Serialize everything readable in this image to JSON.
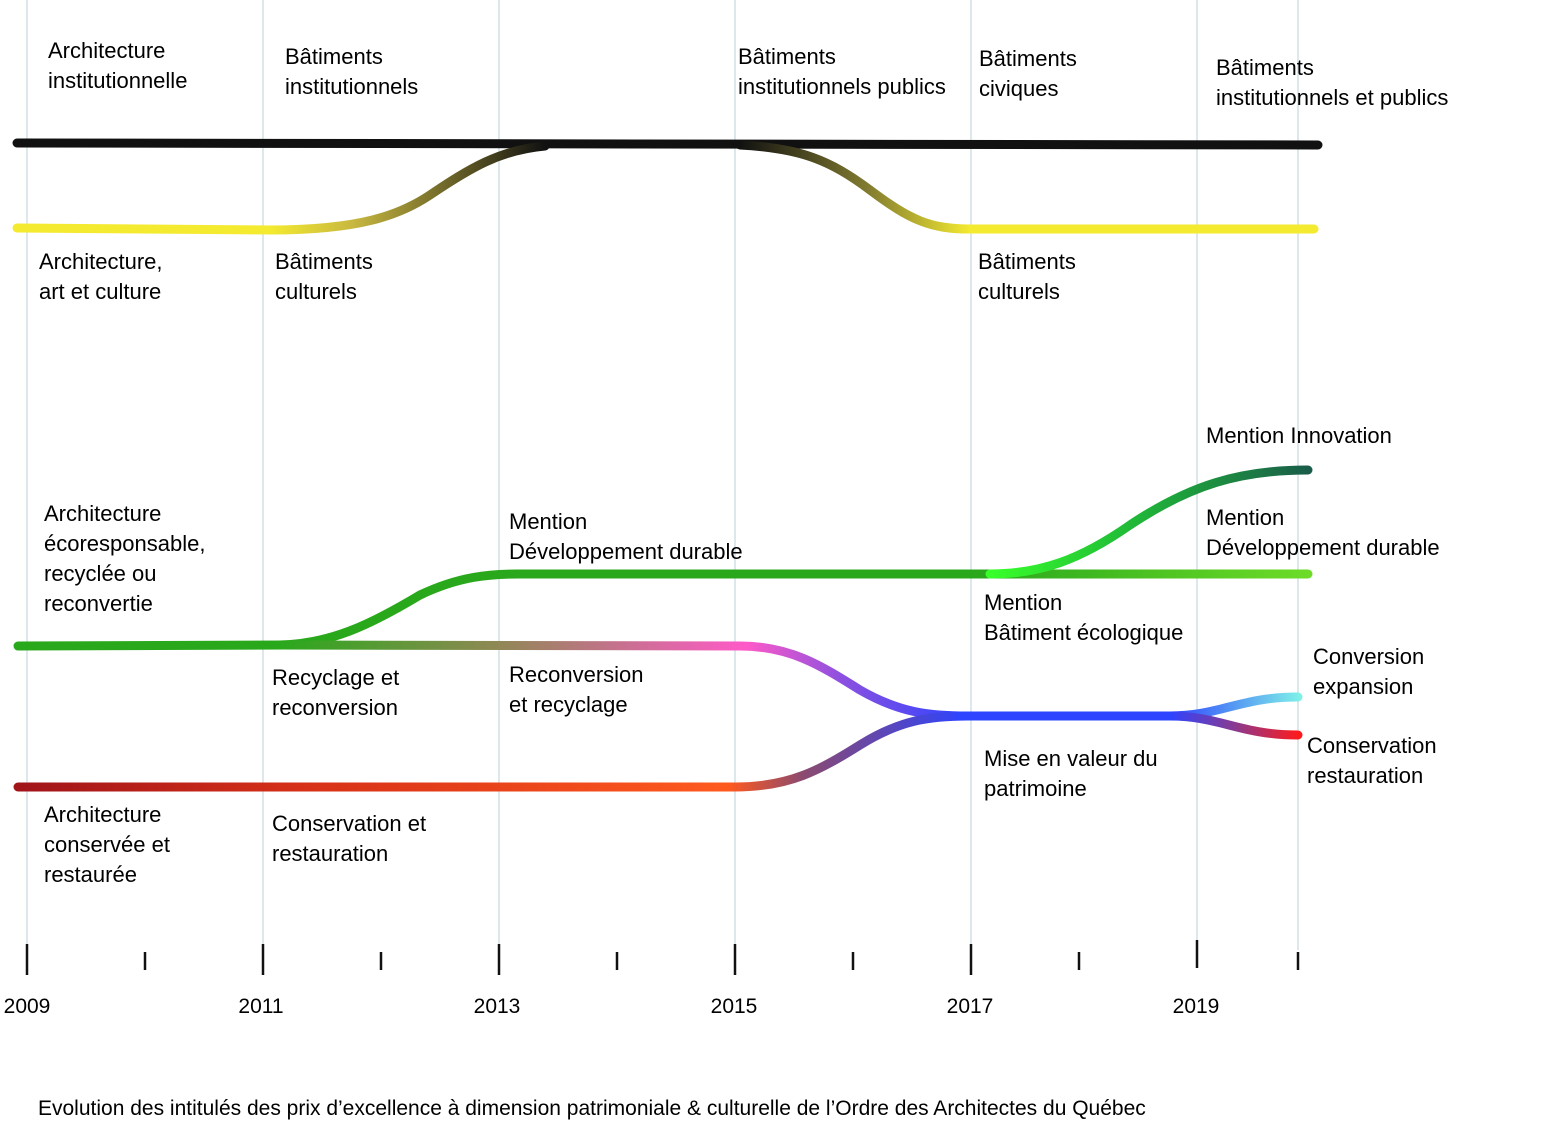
{
  "years": [
    "2009",
    "2011",
    "2013",
    "2015",
    "2017",
    "2019"
  ],
  "labels": {
    "archi_institutionnelle": "Architecture\ninstitutionnelle",
    "batiments_institutionnels": "Bâtiments\ninstitutionnels",
    "batiments_institutionnels_publics": "Bâtiments\ninstitutionnels publics",
    "batiments_civiques": "Bâtiments\nciviques",
    "batiments_institutionnels_et_publics": "Bâtiments\ninstitutionnels et publics",
    "archi_art_culture": "Architecture,\nart et culture",
    "batiments_culturels_2011": "Bâtiments\nculturels",
    "batiments_culturels_2017": "Bâtiments\nculturels",
    "archi_ecoresponsable": "Architecture\nécoresponsable,\nrecyclée ou\nreconvertie",
    "mention_dev_durable_2013": "Mention\nDéveloppement durable",
    "mention_innovation": "Mention Innovation",
    "mention_dev_durable_2019": "Mention\nDéveloppement durable",
    "mention_batiment_ecologique": "Mention\nBâtiment écologique",
    "recyclage_reconversion": "Recyclage et\nreconversion",
    "reconversion_recyclage": "Reconversion\net recyclage",
    "conversion_expansion": "Conversion\nexpansion",
    "conservation_restauration_2019": "Conservation\nrestauration",
    "mise_en_valeur": "Mise en valeur du\npatrimoine",
    "archi_conservee": "Architecture\nconservée et\nrestaurée",
    "conservation_restauration_2011": "Conservation et\nrestauration"
  },
  "caption": "Evolution des intitulés des prix d’excellence à dimension patrimoniale & culturelle de l’Ordre des Architectes du Québec",
  "colors": {
    "institutional": "#111111",
    "cultural": "#f4ea30",
    "green": "#2aa81c",
    "pink": "#ff5ac8",
    "blue": "#2e44ff",
    "darkred": "#a0141a",
    "orange": "#ff5a1e",
    "teal": "#1a5c4a",
    "lightgreen": "#6ddc28",
    "cyan": "#7ef0e8",
    "red": "#ff1a1a",
    "gridline": "#dde8ec"
  }
}
